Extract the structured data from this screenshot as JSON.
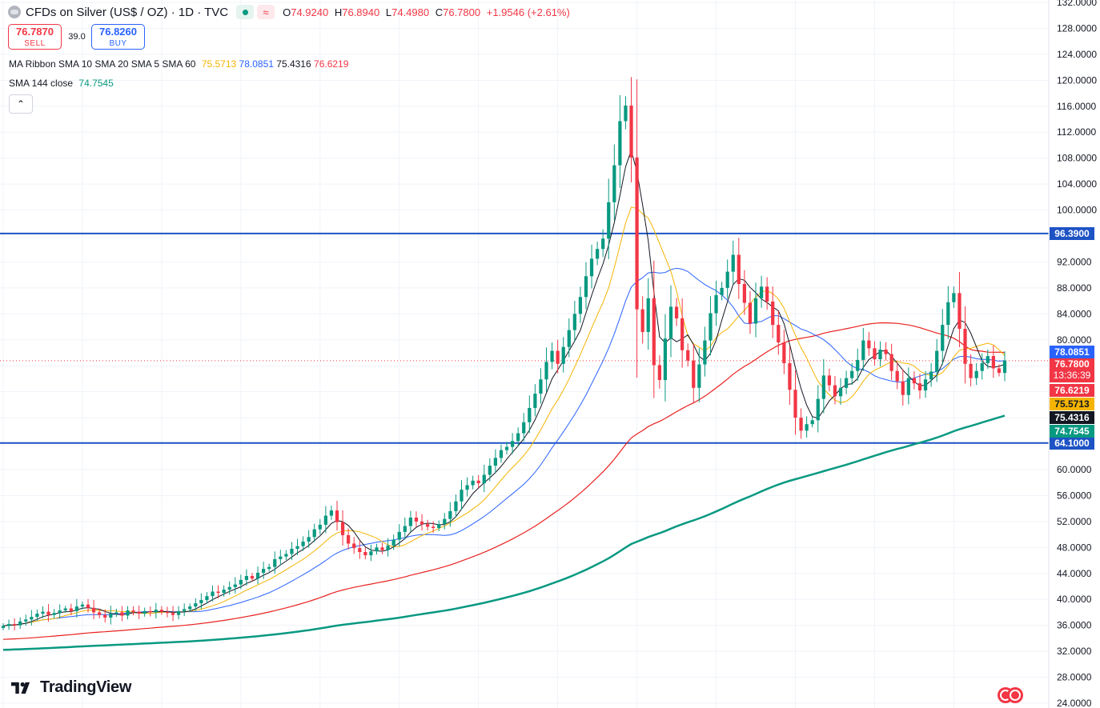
{
  "header": {
    "symbol": "CFDs on Silver (US$ / OZ) · 1D · TVC",
    "open_label": "O",
    "open": "74.9240",
    "high_label": "H",
    "high": "76.8940",
    "low_label": "L",
    "low": "74.4980",
    "close_label": "C",
    "close": "76.7800",
    "change": "+1.9546 (+2.61%)"
  },
  "trade": {
    "sell_price": "76.7870",
    "sell_label": "SELL",
    "spread": "39.0",
    "buy_price": "76.8260",
    "buy_label": "BUY"
  },
  "indicators": {
    "ribbon_name": "MA Ribbon SMA 10 SMA 20 SMA 5 SMA 60",
    "ribbon_values": [
      "75.5713",
      "78.0851",
      "75.4316",
      "76.6219"
    ],
    "sma144_name": "SMA 144 close",
    "sma144_value": "74.7545"
  },
  "logo": "TradingView",
  "colors": {
    "up": "#089981",
    "down": "#f23645",
    "sma5": "#131722",
    "sma10": "#f5b400",
    "sma20": "#2962ff",
    "sma60": "#e8221f",
    "sma144": "#089981",
    "hline": "#1e53c5"
  },
  "icons": [
    "symbol-icon",
    "live-dot-icon",
    "wave-icon",
    "chevron-up-icon",
    "flag-icon"
  ],
  "chart_data": {
    "type": "candlestick",
    "yaxis": {
      "min": 24,
      "max": 132,
      "ticks": [
        "132.0000",
        "128.0000",
        "124.0000",
        "120.0000",
        "116.0000",
        "112.0000",
        "108.0000",
        "104.0000",
        "100.0000",
        "96.0000",
        "92.0000",
        "88.0000",
        "84.0000",
        "80.0000",
        "76.0000",
        "72.0000",
        "68.0000",
        "64.0000",
        "60.0000",
        "56.0000",
        "52.0000",
        "48.0000",
        "44.0000",
        "40.0000",
        "36.0000",
        "32.0000",
        "28.0000",
        "24.0000"
      ]
    },
    "horizontal_lines": [
      {
        "value": 96.39,
        "label": "96.3900"
      },
      {
        "value": 64.1,
        "label": "64.1000"
      }
    ],
    "price_line": {
      "value": 76.78,
      "label": "76.7800",
      "countdown": "13:36:39"
    },
    "axis_badges": [
      {
        "value": 78.0851,
        "label": "78.0851",
        "color": "#2962ff"
      },
      {
        "value": 76.6219,
        "label": "76.6219",
        "color": "#f23645"
      },
      {
        "value": 75.5713,
        "label": "75.5713",
        "color": "#f5b400"
      },
      {
        "value": 75.4316,
        "label": "75.4316",
        "color": "#131722"
      },
      {
        "value": 74.7545,
        "label": "74.7545",
        "color": "#089981"
      }
    ],
    "closes": [
      35.9,
      36.2,
      36.0,
      36.6,
      36.9,
      37.3,
      37.8,
      38.1,
      37.6,
      37.9,
      38.3,
      38.6,
      38.2,
      38.9,
      39.2,
      38.7,
      38.0,
      37.6,
      37.2,
      37.8,
      38.0,
      37.5,
      38.3,
      38.1,
      37.8,
      38.2,
      38.0,
      38.4,
      38.1,
      37.9,
      37.6,
      38.2,
      38.5,
      38.9,
      39.4,
      39.9,
      40.5,
      41.2,
      41.0,
      41.5,
      41.9,
      42.3,
      43.0,
      43.6,
      43.2,
      44.1,
      44.7,
      45.0,
      46.2,
      46.6,
      47.0,
      47.8,
      48.2,
      48.9,
      49.6,
      50.8,
      51.5,
      52.9,
      53.7,
      51.9,
      49.9,
      48.6,
      47.9,
      47.3,
      46.8,
      47.4,
      48.0,
      47.6,
      48.3,
      49.2,
      50.4,
      51.3,
      52.6,
      52.0,
      51.6,
      51.2,
      51.0,
      51.6,
      52.4,
      53.6,
      55.1,
      56.9,
      57.6,
      58.3,
      57.9,
      59.2,
      60.6,
      61.8,
      63.0,
      63.5,
      64.4,
      65.6,
      67.3,
      69.5,
      71.7,
      73.9,
      76.6,
      78.3,
      76.3,
      78.9,
      81.5,
      84.0,
      86.6,
      89.8,
      92.5,
      94.0,
      95.6,
      101.2,
      106.9,
      113.7,
      116.1,
      108.1,
      84.7,
      81.2,
      86.4,
      76.1,
      73.8,
      80.2,
      85.1,
      83.3,
      78.4,
      76.8,
      72.6,
      76.2,
      79.9,
      84.1,
      86.9,
      88.0,
      90.5,
      93.1,
      88.6,
      85.7,
      82.5,
      86.4,
      88.2,
      85.9,
      82.3,
      79.6,
      76.4,
      72.3,
      68.0,
      66.0,
      67.0,
      67.6,
      70.9,
      74.5,
      73.0,
      71.3,
      72.6,
      74.1,
      75.2,
      76.9,
      79.9,
      78.7,
      77.0,
      78.5,
      77.8,
      75.2,
      73.6,
      71.5,
      74.1,
      73.3,
      72.2,
      73.9,
      75.1,
      78.3,
      82.3,
      85.8,
      87.2,
      81.7,
      76.3,
      74.1,
      75.2,
      76.4,
      77.5,
      75.6,
      74.9,
      76.8
    ]
  }
}
